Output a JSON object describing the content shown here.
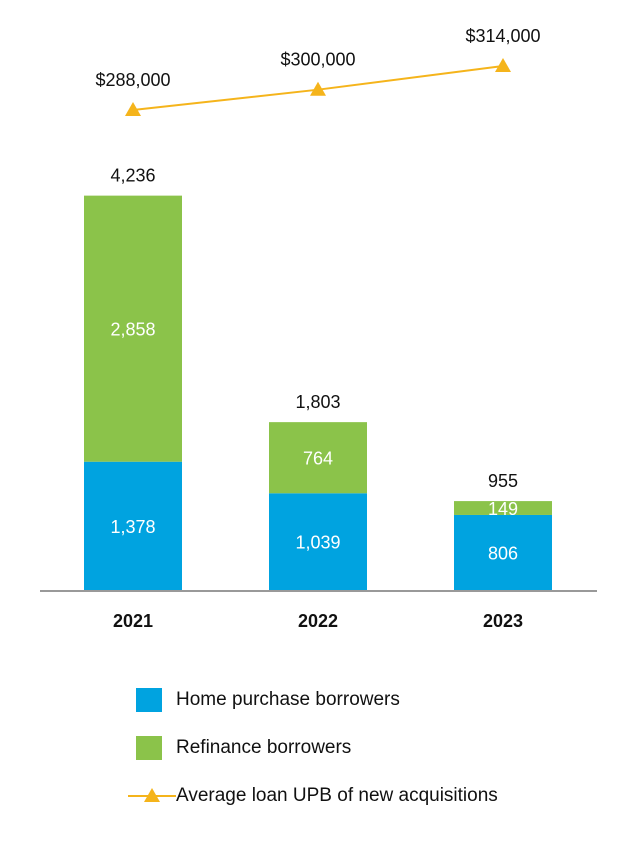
{
  "chart_data": {
    "type": "bar",
    "stacked": true,
    "categories": [
      "2021",
      "2022",
      "2023"
    ],
    "series": [
      {
        "name": "Home purchase borrowers",
        "values": [
          1378,
          1039,
          806
        ],
        "value_labels": [
          "1,378",
          "1,039",
          "806"
        ],
        "color": "#00a3e0"
      },
      {
        "name": "Refinance borrowers",
        "values": [
          2858,
          764,
          149
        ],
        "value_labels": [
          "2,858",
          "764",
          "149"
        ],
        "color": "#8bc34a"
      }
    ],
    "totals": [
      4236,
      1803,
      955
    ],
    "total_labels": [
      "4,236",
      "1,803",
      "955"
    ],
    "line_series": {
      "name": "Average loan UPB of new acquisitions",
      "values": [
        288000,
        300000,
        314000
      ],
      "value_labels": [
        "$288,000",
        "$300,000",
        "$314,000"
      ],
      "color": "#f5b41b",
      "marker": "triangle"
    },
    "legend_position": "bottom",
    "grid": false
  },
  "legend": {
    "items": [
      {
        "label": "Home purchase borrowers",
        "color": "#00a3e0",
        "kind": "box"
      },
      {
        "label": "Refinance borrowers",
        "color": "#8bc34a",
        "kind": "box"
      },
      {
        "label": "Average loan UPB of new acquisitions",
        "color": "#f5b41b",
        "kind": "line-triangle"
      }
    ]
  }
}
